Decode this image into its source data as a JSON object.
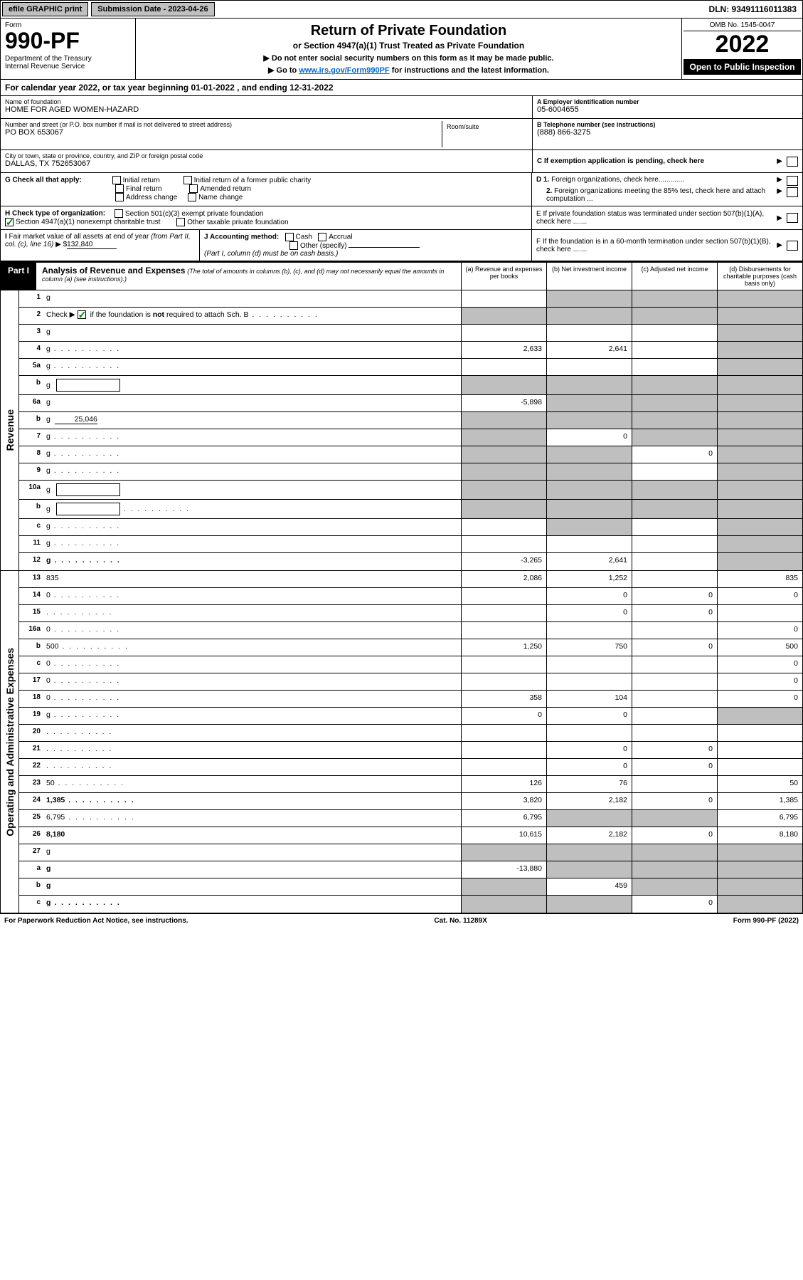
{
  "colors": {
    "black": "#000000",
    "white": "#ffffff",
    "grey_bg": "#bfbfbf",
    "btn_grey": "#c0c0c0",
    "link": "#0066cc",
    "check_green": "#008000"
  },
  "topbar": {
    "efile": "efile GRAPHIC print",
    "sub_date": "Submission Date - 2023-04-26",
    "dln": "DLN: 93491116011383"
  },
  "header": {
    "form_label": "Form",
    "form_num": "990-PF",
    "dept": "Department of the Treasury\nInternal Revenue Service",
    "title": "Return of Private Foundation",
    "subtitle": "or Section 4947(a)(1) Trust Treated as Private Foundation",
    "note1": "▶ Do not enter social security numbers on this form as it may be made public.",
    "note2_pre": "▶ Go to ",
    "note2_link": "www.irs.gov/Form990PF",
    "note2_post": " for instructions and the latest information.",
    "omb": "OMB No. 1545-0047",
    "year": "2022",
    "inspect": "Open to Public Inspection"
  },
  "cal_year": "For calendar year 2022, or tax year beginning 01-01-2022        , and ending 12-31-2022",
  "foundation": {
    "name_lbl": "Name of foundation",
    "name": "HOME FOR AGED WOMEN-HAZARD",
    "addr_lbl": "Number and street (or P.O. box number if mail is not delivered to street address)",
    "addr": "PO BOX 653067",
    "room_lbl": "Room/suite",
    "city_lbl": "City or town, state or province, country, and ZIP or foreign postal code",
    "city": "DALLAS, TX  752653067",
    "ein_lbl": "A Employer identification number",
    "ein": "05-6004655",
    "tel_lbl": "B Telephone number (see instructions)",
    "tel": "(888) 866-3275",
    "c_lbl": "C If exemption application is pending, check here",
    "d1": "D 1. Foreign organizations, check here.............",
    "d2": "2. Foreign organizations meeting the 85% test, check here and attach computation ...",
    "e_lbl": "E  If private foundation status was terminated under section 507(b)(1)(A), check here .......",
    "f_lbl": "F  If the foundation is in a 60-month termination under section 507(b)(1)(B), check here ......."
  },
  "g_row": {
    "label": "G Check all that apply:",
    "opts": [
      "Initial return",
      "Initial return of a former public charity",
      "Final return",
      "Amended return",
      "Address change",
      "Name change"
    ]
  },
  "h_row": {
    "label": "H Check type of organization:",
    "opt1": "Section 501(c)(3) exempt private foundation",
    "opt2": "Section 4947(a)(1) nonexempt charitable trust",
    "opt3": "Other taxable private foundation",
    "opt2_checked": true
  },
  "i_row": {
    "label": "I Fair market value of all assets at end of year (from Part II, col. (c), line 16)",
    "val_prefix": "▶ $",
    "val": "132,840"
  },
  "j_row": {
    "label": "J Accounting method:",
    "cash": "Cash",
    "accrual": "Accrual",
    "other": "Other (specify)",
    "note": "(Part I, column (d) must be on cash basis.)"
  },
  "part1": {
    "label": "Part I",
    "title": "Analysis of Revenue and Expenses",
    "italic": "(The total of amounts in columns (b), (c), and (d) may not necessarily equal the amounts in column (a) (see instructions).)",
    "col_a": "(a)  Revenue and expenses per books",
    "col_b": "(b)  Net investment income",
    "col_c": "(c)  Adjusted net income",
    "col_d": "(d)  Disbursements for charitable purposes (cash basis only)"
  },
  "side_labels": {
    "revenue": "Revenue",
    "expenses": "Operating and Administrative Expenses"
  },
  "rows": [
    {
      "n": "1",
      "d": "g",
      "a": "",
      "b": "g",
      "c": "g"
    },
    {
      "n": "2",
      "d": "g",
      "dots": true,
      "a": "g",
      "b": "g",
      "c": "g",
      "bold_not": true
    },
    {
      "n": "3",
      "d": "g",
      "a": "",
      "b": "",
      "c": ""
    },
    {
      "n": "4",
      "d": "g",
      "dots": true,
      "a": "2,633",
      "b": "2,641",
      "c": ""
    },
    {
      "n": "5a",
      "d": "g",
      "dots": true,
      "a": "",
      "b": "",
      "c": ""
    },
    {
      "n": "b",
      "d": "g",
      "box": true,
      "a": "g",
      "b": "g",
      "c": "g"
    },
    {
      "n": "6a",
      "d": "g",
      "a": "-5,898",
      "b": "g",
      "c": "g"
    },
    {
      "n": "b",
      "d": "g",
      "inline": "25,046",
      "a": "g",
      "b": "g",
      "c": "g"
    },
    {
      "n": "7",
      "d": "g",
      "dots": true,
      "a": "g",
      "b": "0",
      "c": "g"
    },
    {
      "n": "8",
      "d": "g",
      "dots": true,
      "a": "g",
      "b": "g",
      "c": "0"
    },
    {
      "n": "9",
      "d": "g",
      "dots": true,
      "a": "g",
      "b": "g",
      "c": ""
    },
    {
      "n": "10a",
      "d": "g",
      "box": true,
      "a": "g",
      "b": "g",
      "c": "g"
    },
    {
      "n": "b",
      "d": "g",
      "dots": true,
      "box": true,
      "a": "g",
      "b": "g",
      "c": "g"
    },
    {
      "n": "c",
      "d": "g",
      "dots": true,
      "a": "",
      "b": "g",
      "c": ""
    },
    {
      "n": "11",
      "d": "g",
      "dots": true,
      "a": "",
      "b": "",
      "c": ""
    },
    {
      "n": "12",
      "d": "g",
      "dots": true,
      "bold": true,
      "a": "-3,265",
      "b": "2,641",
      "c": ""
    },
    {
      "n": "13",
      "d": "835",
      "a": "2,086",
      "b": "1,252",
      "c": ""
    },
    {
      "n": "14",
      "d": "0",
      "dots": true,
      "a": "",
      "b": "0",
      "c": "0"
    },
    {
      "n": "15",
      "d": "",
      "dots": true,
      "a": "",
      "b": "0",
      "c": "0"
    },
    {
      "n": "16a",
      "d": "0",
      "dots": true,
      "a": "",
      "b": "",
      "c": ""
    },
    {
      "n": "b",
      "d": "500",
      "dots": true,
      "a": "1,250",
      "b": "750",
      "c": "0"
    },
    {
      "n": "c",
      "d": "0",
      "dots": true,
      "a": "",
      "b": "",
      "c": ""
    },
    {
      "n": "17",
      "d": "0",
      "dots": true,
      "a": "",
      "b": "",
      "c": ""
    },
    {
      "n": "18",
      "d": "0",
      "dots": true,
      "a": "358",
      "b": "104",
      "c": ""
    },
    {
      "n": "19",
      "d": "g",
      "dots": true,
      "a": "0",
      "b": "0",
      "c": ""
    },
    {
      "n": "20",
      "d": "",
      "dots": true,
      "a": "",
      "b": "",
      "c": ""
    },
    {
      "n": "21",
      "d": "",
      "dots": true,
      "a": "",
      "b": "0",
      "c": "0"
    },
    {
      "n": "22",
      "d": "",
      "dots": true,
      "a": "",
      "b": "0",
      "c": "0"
    },
    {
      "n": "23",
      "d": "50",
      "dots": true,
      "a": "126",
      "b": "76",
      "c": ""
    },
    {
      "n": "24",
      "d": "1,385",
      "dots": true,
      "bold": true,
      "a": "3,820",
      "b": "2,182",
      "c": "0"
    },
    {
      "n": "25",
      "d": "6,795",
      "dots": true,
      "a": "6,795",
      "b": "g",
      "c": "g"
    },
    {
      "n": "26",
      "d": "8,180",
      "bold": true,
      "a": "10,615",
      "b": "2,182",
      "c": "0"
    },
    {
      "n": "27",
      "d": "g",
      "a": "g",
      "b": "g",
      "c": "g"
    },
    {
      "n": "a",
      "d": "g",
      "bold": true,
      "a": "-13,880",
      "b": "g",
      "c": "g"
    },
    {
      "n": "b",
      "d": "g",
      "bold": true,
      "a": "g",
      "b": "459",
      "c": "g"
    },
    {
      "n": "c",
      "d": "g",
      "dots": true,
      "bold": true,
      "a": "g",
      "b": "g",
      "c": "0"
    }
  ],
  "footer": {
    "left": "For Paperwork Reduction Act Notice, see instructions.",
    "mid": "Cat. No. 11289X",
    "right": "Form 990-PF (2022)"
  }
}
